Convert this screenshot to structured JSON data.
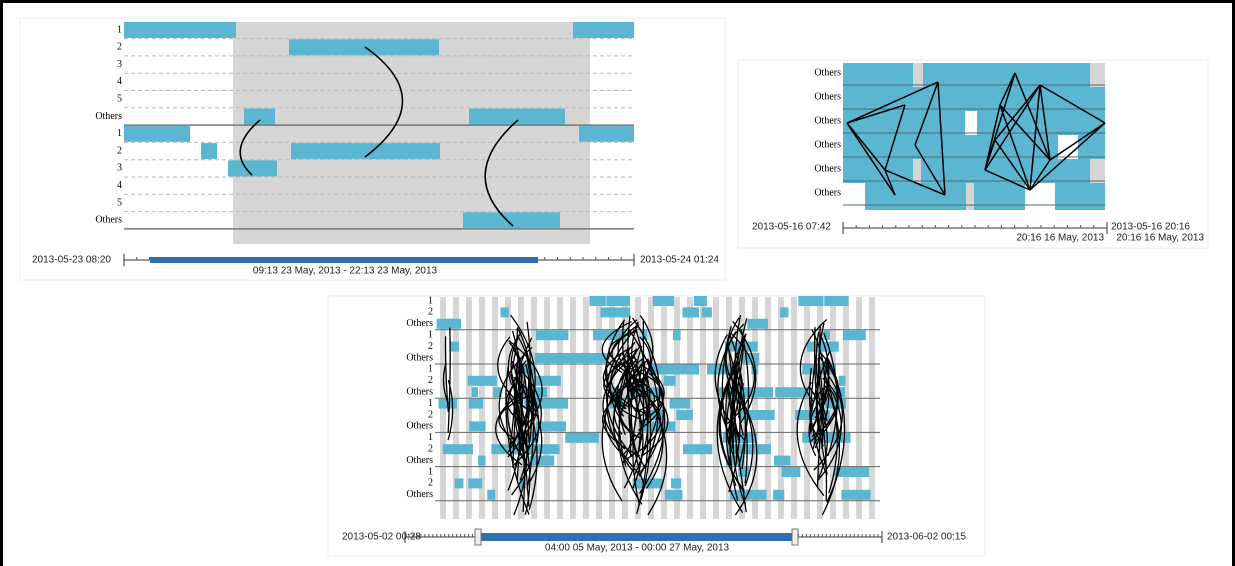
{
  "panels": [
    {
      "row_labels": [
        "1",
        "2",
        "3",
        "4",
        "5",
        "Others",
        "1",
        "2",
        "3",
        "4",
        "5",
        "Others"
      ],
      "start": "2013-05-23 08:20",
      "end": "2013-05-24 01:24",
      "range_labels": [
        "09:13 23 May, 2013 - 22:13 23 May, 2013"
      ]
    },
    {
      "row_labels": [
        "Others",
        "Others",
        "Others",
        "Others",
        "Others",
        "Others"
      ],
      "start": "2013-05-16 07:42",
      "end": "2013-05-16 20:16",
      "range_labels": [
        "20:16 16 May, 2013",
        "20:16 16 May, 2013"
      ]
    },
    {
      "row_labels": [
        "1",
        "2",
        "Others",
        "1",
        "2",
        "Others",
        "1",
        "2",
        "Others",
        "1",
        "2",
        "Others",
        "1",
        "2",
        "Others",
        "1",
        "2",
        "Others"
      ],
      "start": "2013-05-02 00:28",
      "end": "2013-06-02 00:15",
      "range_labels": [
        "04:00 05 May, 2013 - 00:00 27 May, 2013"
      ]
    }
  ]
}
